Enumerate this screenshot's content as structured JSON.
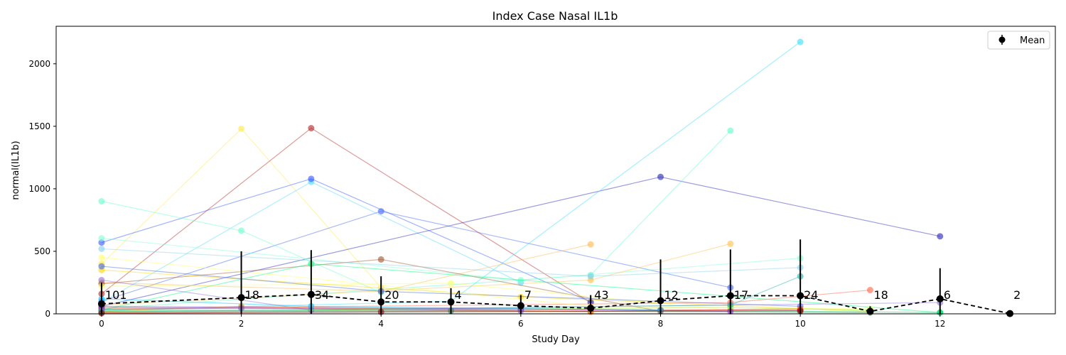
{
  "chart_data": {
    "type": "line",
    "title": "Index Case Nasal IL1b",
    "xlabel": "Study Day",
    "ylabel": "normal(IL1b)",
    "xlim": [
      -0.65,
      13.65
    ],
    "ylim": [
      0,
      2300
    ],
    "xticks": [
      0,
      2,
      4,
      6,
      8,
      10,
      12
    ],
    "yticks": [
      0,
      500,
      1000,
      1500,
      2000
    ],
    "grid": false,
    "legend": {
      "position": "top-right",
      "entries": [
        "Mean"
      ]
    },
    "mean_series": {
      "name": "Mean",
      "color": "#000000",
      "x": [
        0,
        2,
        3,
        4,
        5,
        6,
        7,
        8,
        9,
        10,
        11,
        12,
        13
      ],
      "y": [
        80,
        130,
        155,
        95,
        95,
        65,
        45,
        105,
        145,
        145,
        20,
        120,
        2
      ],
      "err": [
        170,
        370,
        355,
        205,
        110,
        85,
        105,
        330,
        370,
        450,
        40,
        245,
        0
      ],
      "n": [
        "101",
        "18",
        "34",
        "20",
        "4",
        "7",
        "43",
        "12",
        "17",
        "24",
        "18",
        "6",
        "2"
      ]
    },
    "subject_series": [
      {
        "color": "#ffe94d",
        "x": [
          0,
          2,
          4
        ],
        "y": [
          400,
          1480,
          210
        ]
      },
      {
        "color": "#b22222",
        "x": [
          0,
          3,
          7
        ],
        "y": [
          160,
          1485,
          90
        ]
      },
      {
        "color": "#55d8ff",
        "x": [
          0,
          3,
          6
        ],
        "y": [
          90,
          1055,
          250
        ]
      },
      {
        "color": "#3355ff",
        "x": [
          0,
          3,
          7
        ],
        "y": [
          570,
          1080,
          95
        ]
      },
      {
        "color": "#4166f5",
        "x": [
          0,
          4,
          9
        ],
        "y": [
          100,
          820,
          210
        ]
      },
      {
        "color": "#2222bb",
        "x": [
          0,
          8,
          12
        ],
        "y": [
          60,
          1095,
          620
        ]
      },
      {
        "color": "#33ddff",
        "x": [
          0,
          5,
          10
        ],
        "y": [
          30,
          100,
          2175
        ]
      },
      {
        "color": "#5dffc8",
        "x": [
          0,
          7,
          9
        ],
        "y": [
          40,
          310,
          1465
        ]
      },
      {
        "color": "#66ffcc",
        "x": [
          0,
          2,
          4
        ],
        "y": [
          900,
          665,
          170
        ]
      },
      {
        "color": "#7fffd4",
        "x": [
          0,
          6,
          10
        ],
        "y": [
          605,
          270,
          445
        ]
      },
      {
        "color": "#ffb84d",
        "x": [
          0,
          4,
          7
        ],
        "y": [
          250,
          180,
          555
        ]
      },
      {
        "color": "#ffc04d",
        "x": [
          0,
          7,
          9
        ],
        "y": [
          70,
          270,
          560
        ]
      },
      {
        "color": "#a0522d",
        "x": [
          0,
          4,
          8
        ],
        "y": [
          240,
          435,
          20
        ]
      },
      {
        "color": "#ff6347",
        "x": [
          0,
          9,
          11
        ],
        "y": [
          40,
          90,
          190
        ]
      },
      {
        "color": "#00ff80",
        "x": [
          0,
          3,
          12
        ],
        "y": [
          30,
          400,
          10
        ]
      },
      {
        "color": "#f5ff66",
        "x": [
          0,
          5,
          9
        ],
        "y": [
          220,
          245,
          30
        ]
      },
      {
        "color": "#ffd700",
        "x": [
          0,
          6,
          11
        ],
        "y": [
          350,
          135,
          20
        ]
      },
      {
        "color": "#4169e1",
        "x": [
          0,
          4,
          10
        ],
        "y": [
          380,
          180,
          60
        ]
      },
      {
        "color": "#9370db",
        "x": [
          0,
          3,
          12
        ],
        "y": [
          270,
          30,
          90
        ]
      },
      {
        "color": "#00cc66",
        "x": [
          0,
          10,
          12
        ],
        "y": [
          30,
          20,
          10
        ]
      },
      {
        "color": "#7cfc00",
        "x": [
          0,
          9,
          11
        ],
        "y": [
          20,
          50,
          30
        ]
      },
      {
        "color": "#ff4500",
        "x": [
          0,
          7,
          10
        ],
        "y": [
          10,
          20,
          40
        ]
      },
      {
        "color": "#dc143c",
        "x": [
          0,
          8,
          10
        ],
        "y": [
          50,
          30,
          30
        ]
      },
      {
        "color": "#8a2be2",
        "x": [
          0,
          6,
          9
        ],
        "y": [
          60,
          40,
          20
        ]
      },
      {
        "color": "#ff8c00",
        "x": [
          0,
          2,
          7
        ],
        "y": [
          20,
          60,
          15
        ]
      },
      {
        "color": "#00bfff",
        "x": [
          0,
          3,
          8
        ],
        "y": [
          120,
          60,
          30
        ]
      },
      {
        "color": "#2e8b57",
        "x": [
          0,
          5,
          11
        ],
        "y": [
          15,
          25,
          10
        ]
      },
      {
        "color": "#ffff66",
        "x": [
          0,
          7,
          11
        ],
        "y": [
          450,
          60,
          40
        ]
      },
      {
        "color": "#20b2aa",
        "x": [
          0,
          9,
          10
        ],
        "y": [
          15,
          70,
          300
        ]
      },
      {
        "color": "#6a5acd",
        "x": [
          0,
          2,
          6
        ],
        "y": [
          35,
          45,
          25
        ]
      },
      {
        "color": "#8b0000",
        "x": [
          0,
          4,
          10
        ],
        "y": [
          5,
          15,
          25
        ]
      },
      {
        "color": "#87ceeb",
        "x": [
          0,
          7,
          10
        ],
        "y": [
          520,
          300,
          370
        ]
      }
    ]
  }
}
